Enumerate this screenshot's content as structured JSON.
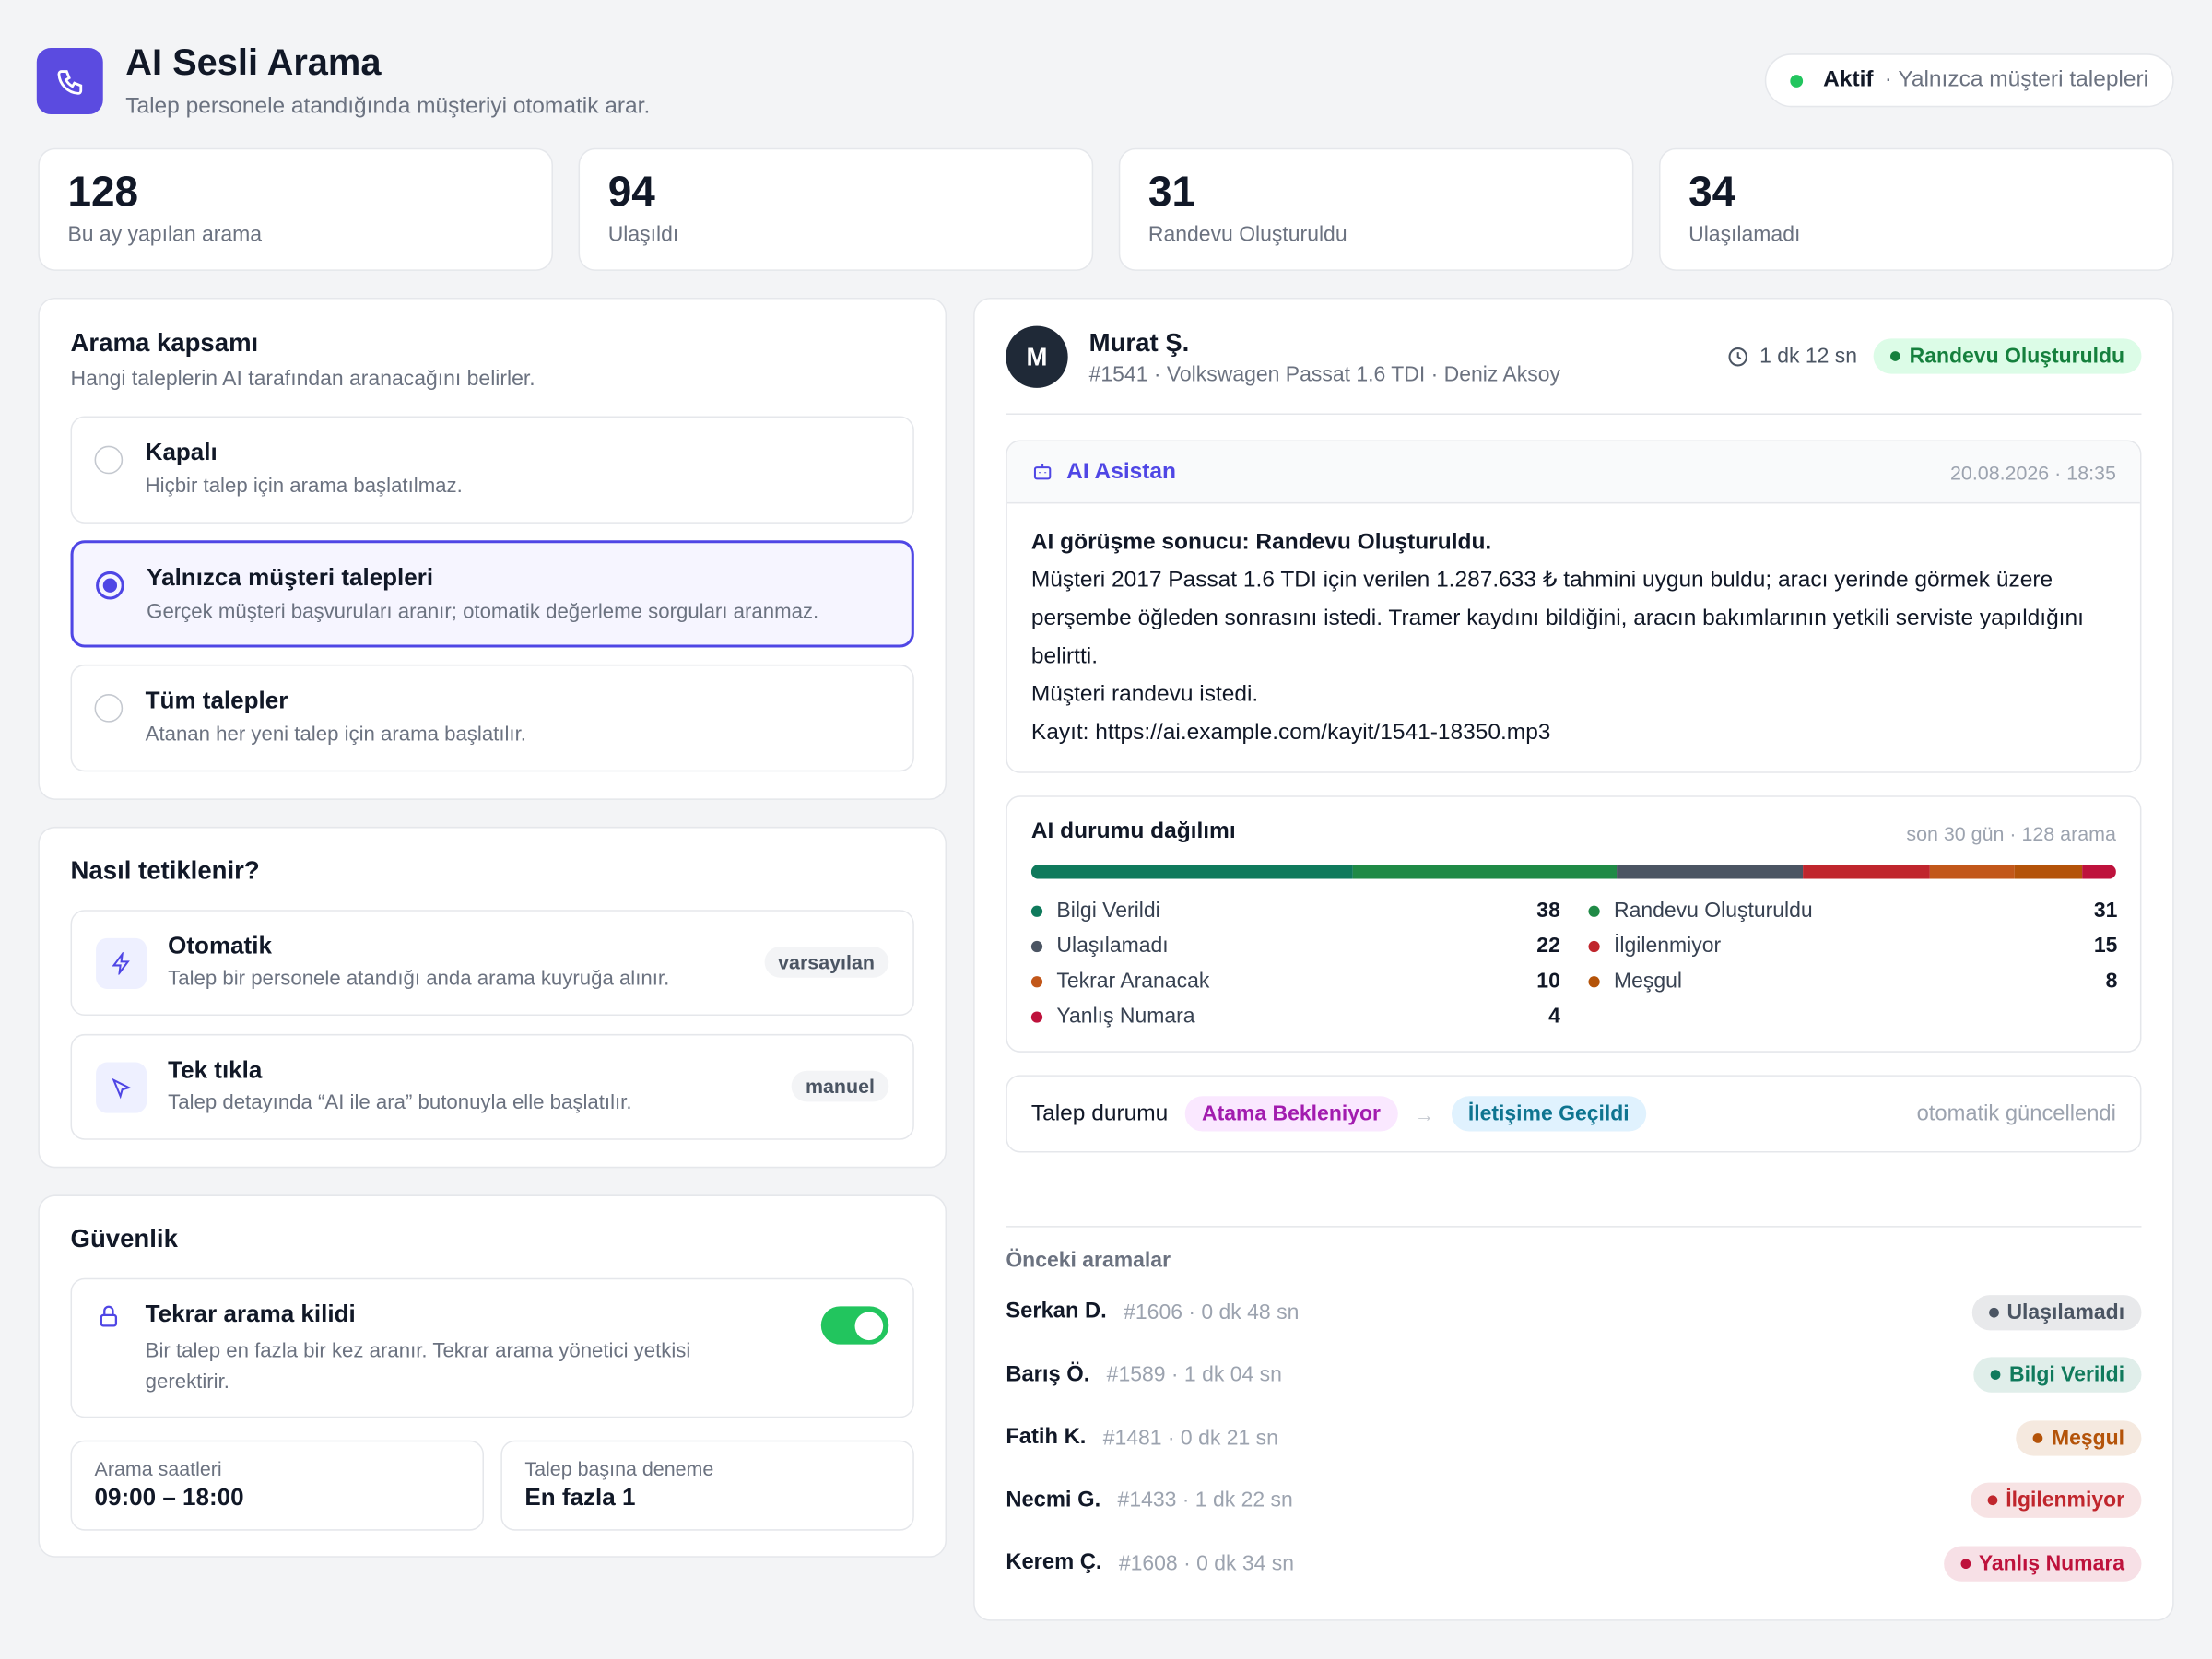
{
  "header": {
    "title": "AI Sesli Arama",
    "subtitle": "Talep personele atandığında müşteriyi otomatik arar.",
    "status": "Aktif",
    "status_detail": "· Yalnızca müşteri talepleri"
  },
  "stats": [
    {
      "value": 128,
      "label": "Bu ay yapılan arama"
    },
    {
      "value": 94,
      "label": "Ulaşıldı"
    },
    {
      "value": 31,
      "label": "Randevu Oluşturuldu"
    },
    {
      "value": 34,
      "label": "Ulaşılamadı"
    }
  ],
  "scope": {
    "title": "Arama kapsamı",
    "subtitle": "Hangi taleplerin AI tarafından aranacağını belirler.",
    "options": [
      {
        "label": "Kapalı",
        "description": "Hiçbir talep için arama başlatılmaz.",
        "selected": false
      },
      {
        "label": "Yalnızca müşteri talepleri",
        "description": "Gerçek müşteri başvuruları aranır; otomatik değerleme sorguları aranmaz.",
        "selected": true
      },
      {
        "label": "Tüm talepler",
        "description": "Atanan her yeni talep için arama başlatılır.",
        "selected": false
      }
    ]
  },
  "trigger": {
    "title": "Nasıl tetiklenir?",
    "options": [
      {
        "label": "Otomatik",
        "description": "Talep bir personele atandığı anda arama kuyruğa alınır.",
        "tag": "varsayılan"
      },
      {
        "label": "Tek tıkla",
        "description": "Talep detayında “AI ile ara” butonuyla elle başlatılır.",
        "tag": "manuel"
      }
    ]
  },
  "security": {
    "title": "Güvenlik",
    "lock": {
      "label": "Tekrar arama kilidi",
      "description": "Bir talep en fazla bir kez aranır. Tekrar arama yönetici yetkisi gerektirir.",
      "enabled": true
    },
    "fields": [
      {
        "label": "Arama saatleri",
        "value": "09:00 – 18:00"
      },
      {
        "label": "Talep başına deneme",
        "value": "En fazla 1"
      }
    ]
  },
  "call": {
    "avatar": "M",
    "name": "Murat Ş.",
    "meta": "#1541 · Volkswagen Passat 1.6 TDI · Deniz Aksoy",
    "duration": "1 dk 12 sn",
    "result": "Randevu Oluşturuldu",
    "assistant": {
      "label": "AI Asistan",
      "date": "20.08.2026 · 18:35",
      "heading": "AI görüşme sonucu: Randevu Oluşturuldu.",
      "lines": [
        "Müşteri 2017 Passat 1.6 TDI için verilen 1.287.633 ₺ tahmini uygun buldu; aracı yerinde görmek üzere perşembe öğleden sonrasını istedi. Tramer kaydını bildiğini, aracın bakımlarının yetkili serviste yapıldığını belirtti.",
        "Müşteri randevu istedi.",
        "Kayıt: https://ai.example.com/kayit/1541-18350.mp3"
      ]
    }
  },
  "distribution": {
    "title": "AI durumu dağılımı",
    "period": "son 30 gün · 128 arama",
    "items": [
      {
        "label": "Bilgi Verildi",
        "value": 38,
        "color": "#0f7a5c"
      },
      {
        "label": "Randevu Oluşturuldu",
        "value": 31,
        "color": "#1f8a46"
      },
      {
        "label": "Ulaşılamadı",
        "value": 22,
        "color": "#4b5563"
      },
      {
        "label": "İlgilenmiyor",
        "value": 15,
        "color": "#c0262d"
      },
      {
        "label": "Tekrar Aranacak",
        "value": 10,
        "color": "#c2571a"
      },
      {
        "label": "Meşgul",
        "value": 8,
        "color": "#b45309"
      },
      {
        "label": "Yanlış Numara",
        "value": 4,
        "color": "#be123c"
      }
    ]
  },
  "status_flow": {
    "label": "Talep durumu",
    "from": "Atama Bekleniyor",
    "arrow": "→",
    "to": "İletişime Geçildi",
    "note": "otomatik güncellendi"
  },
  "history": {
    "title": "Önceki aramalar",
    "rows": [
      {
        "name": "Serkan D.",
        "meta": "#1606 · 0 dk 48 sn",
        "status": "Ulaşılamadı",
        "color": "#4b5563"
      },
      {
        "name": "Barış Ö.",
        "meta": "#1589 · 1 dk 04 sn",
        "status": "Bilgi Verildi",
        "color": "#0f7a5c"
      },
      {
        "name": "Fatih K.",
        "meta": "#1481 · 0 dk 21 sn",
        "status": "Meşgul",
        "color": "#b45309"
      },
      {
        "name": "Necmi G.",
        "meta": "#1433 · 1 dk 22 sn",
        "status": "İlgilenmiyor",
        "color": "#c0262d"
      },
      {
        "name": "Kerem Ç.",
        "meta": "#1608 · 0 dk 34 sn",
        "status": "Yanlış Numara",
        "color": "#be123c"
      }
    ]
  }
}
